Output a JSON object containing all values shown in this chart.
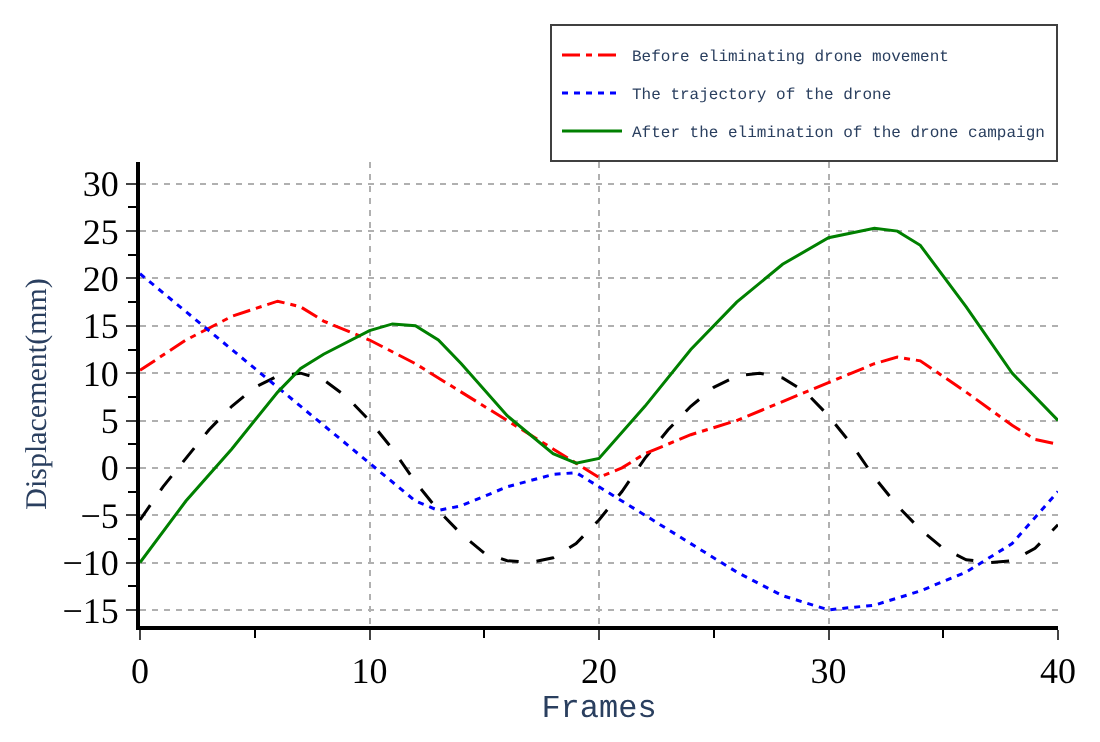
{
  "chart_data": {
    "type": "line",
    "xlabel": "Frames",
    "ylabel": "Displacement(mm)",
    "xlim": [
      0,
      40
    ],
    "ylim": [
      -16.7,
      32.3
    ],
    "xticks": [
      0,
      10,
      20,
      30,
      40
    ],
    "yticks": [
      -15,
      -10,
      -5,
      0,
      5,
      10,
      15,
      20,
      25,
      30
    ],
    "grid": true,
    "legend": "top right",
    "marker": "none",
    "series": [
      {
        "color": "#000000",
        "line_style": "dashed",
        "x": [
          0,
          1,
          2,
          3,
          4,
          5,
          6,
          7,
          8,
          9,
          10,
          11,
          12,
          13,
          14,
          15,
          16,
          17,
          18,
          19,
          20,
          21,
          22,
          23,
          24,
          25,
          26,
          27,
          28,
          29,
          30,
          31,
          32,
          33,
          34,
          35,
          36,
          37,
          38,
          39,
          40
        ],
        "values": [
          -5.5,
          -2,
          1,
          4,
          6.5,
          8.5,
          9.7,
          10,
          9.3,
          7.5,
          5,
          2,
          -1.5,
          -4.5,
          -7,
          -9,
          -9.8,
          -10,
          -9.5,
          -8,
          -5.5,
          -2.5,
          1,
          4,
          6.5,
          8.5,
          9.7,
          10,
          9.5,
          8,
          5.5,
          2.5,
          -1,
          -4,
          -6.5,
          -8.5,
          -9.7,
          -10,
          -9.8,
          -8.5,
          -6
        ]
      },
      {
        "name": "Before eliminating drone movement",
        "color": "#ff0000",
        "line_style": "dashdot",
        "x": [
          0,
          2,
          4,
          6,
          7,
          8,
          10,
          12,
          14,
          16,
          18,
          20,
          21,
          22,
          24,
          26,
          28,
          30,
          32,
          33,
          34,
          36,
          38,
          39,
          40
        ],
        "values": [
          10.3,
          13.5,
          16,
          17.6,
          17,
          15.5,
          13.5,
          11,
          8,
          5,
          2,
          -1,
          0,
          1.5,
          3.5,
          5,
          7,
          9,
          11,
          11.7,
          11.3,
          8,
          4.5,
          3,
          2.5
        ]
      },
      {
        "name": "The trajectory of the drone",
        "color": "#0000ff",
        "line_style": "dotted",
        "x": [
          0,
          2,
          4,
          6,
          8,
          10,
          12,
          13,
          14,
          16,
          18,
          19,
          20,
          22,
          24,
          26,
          28,
          30,
          32,
          34,
          36,
          38,
          40
        ],
        "values": [
          20.5,
          16.5,
          12.5,
          8.5,
          4.5,
          0.5,
          -3.5,
          -4.5,
          -4,
          -2,
          -0.7,
          -0.5,
          -2,
          -5,
          -8,
          -11,
          -13.5,
          -15,
          -14.5,
          -13,
          -11,
          -8,
          -2.5
        ]
      },
      {
        "name": "After the elimination of the drone campaign",
        "color": "#008000",
        "line_style": "solid",
        "x": [
          0,
          2,
          4,
          6,
          7,
          8,
          10,
          11,
          12,
          13,
          14,
          16,
          18,
          19,
          20,
          22,
          24,
          26,
          28,
          30,
          32,
          33,
          34,
          36,
          38,
          40
        ],
        "values": [
          -10,
          -3.5,
          2,
          8,
          10.5,
          12,
          14.5,
          15.2,
          15,
          13.5,
          11,
          5.5,
          1.5,
          0.5,
          1,
          6.5,
          12.5,
          17.5,
          21.5,
          24.3,
          25.3,
          25,
          23.5,
          17,
          10,
          5
        ]
      }
    ]
  }
}
